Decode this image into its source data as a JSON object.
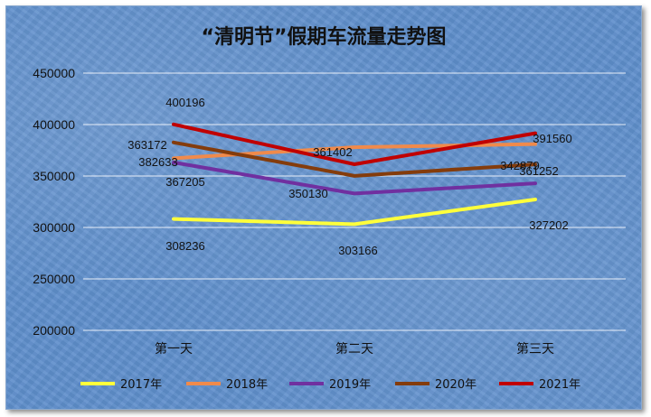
{
  "chart_data": {
    "type": "line",
    "title": "“清明节”假期车流量走势图",
    "categories": [
      "第一天",
      "第二天",
      "第三天"
    ],
    "ylim": [
      200000,
      450000
    ],
    "yticks": [
      200000,
      250000,
      300000,
      350000,
      400000,
      450000
    ],
    "grid": true,
    "legend_position": "bottom",
    "series": [
      {
        "name": "2017年",
        "color": "#ffff3b",
        "values": [
          308236,
          303166,
          327202
        ]
      },
      {
        "name": "2018年",
        "color": "#f08a4b",
        "values": [
          367205,
          378000,
          381000
        ]
      },
      {
        "name": "2019年",
        "color": "#7030a0",
        "values": [
          363172,
          333000,
          342879
        ]
      },
      {
        "name": "2020年",
        "color": "#843c0c",
        "values": [
          382633,
          350130,
          361252
        ]
      },
      {
        "name": "2021年",
        "color": "#c00000",
        "values": [
          400196,
          361402,
          391560
        ]
      }
    ],
    "data_labels": [
      "400196",
      "363172",
      "382633",
      "367205",
      "308236",
      "361402",
      "350130",
      "303166",
      "391560",
      "342879",
      "361252",
      "327202"
    ]
  }
}
